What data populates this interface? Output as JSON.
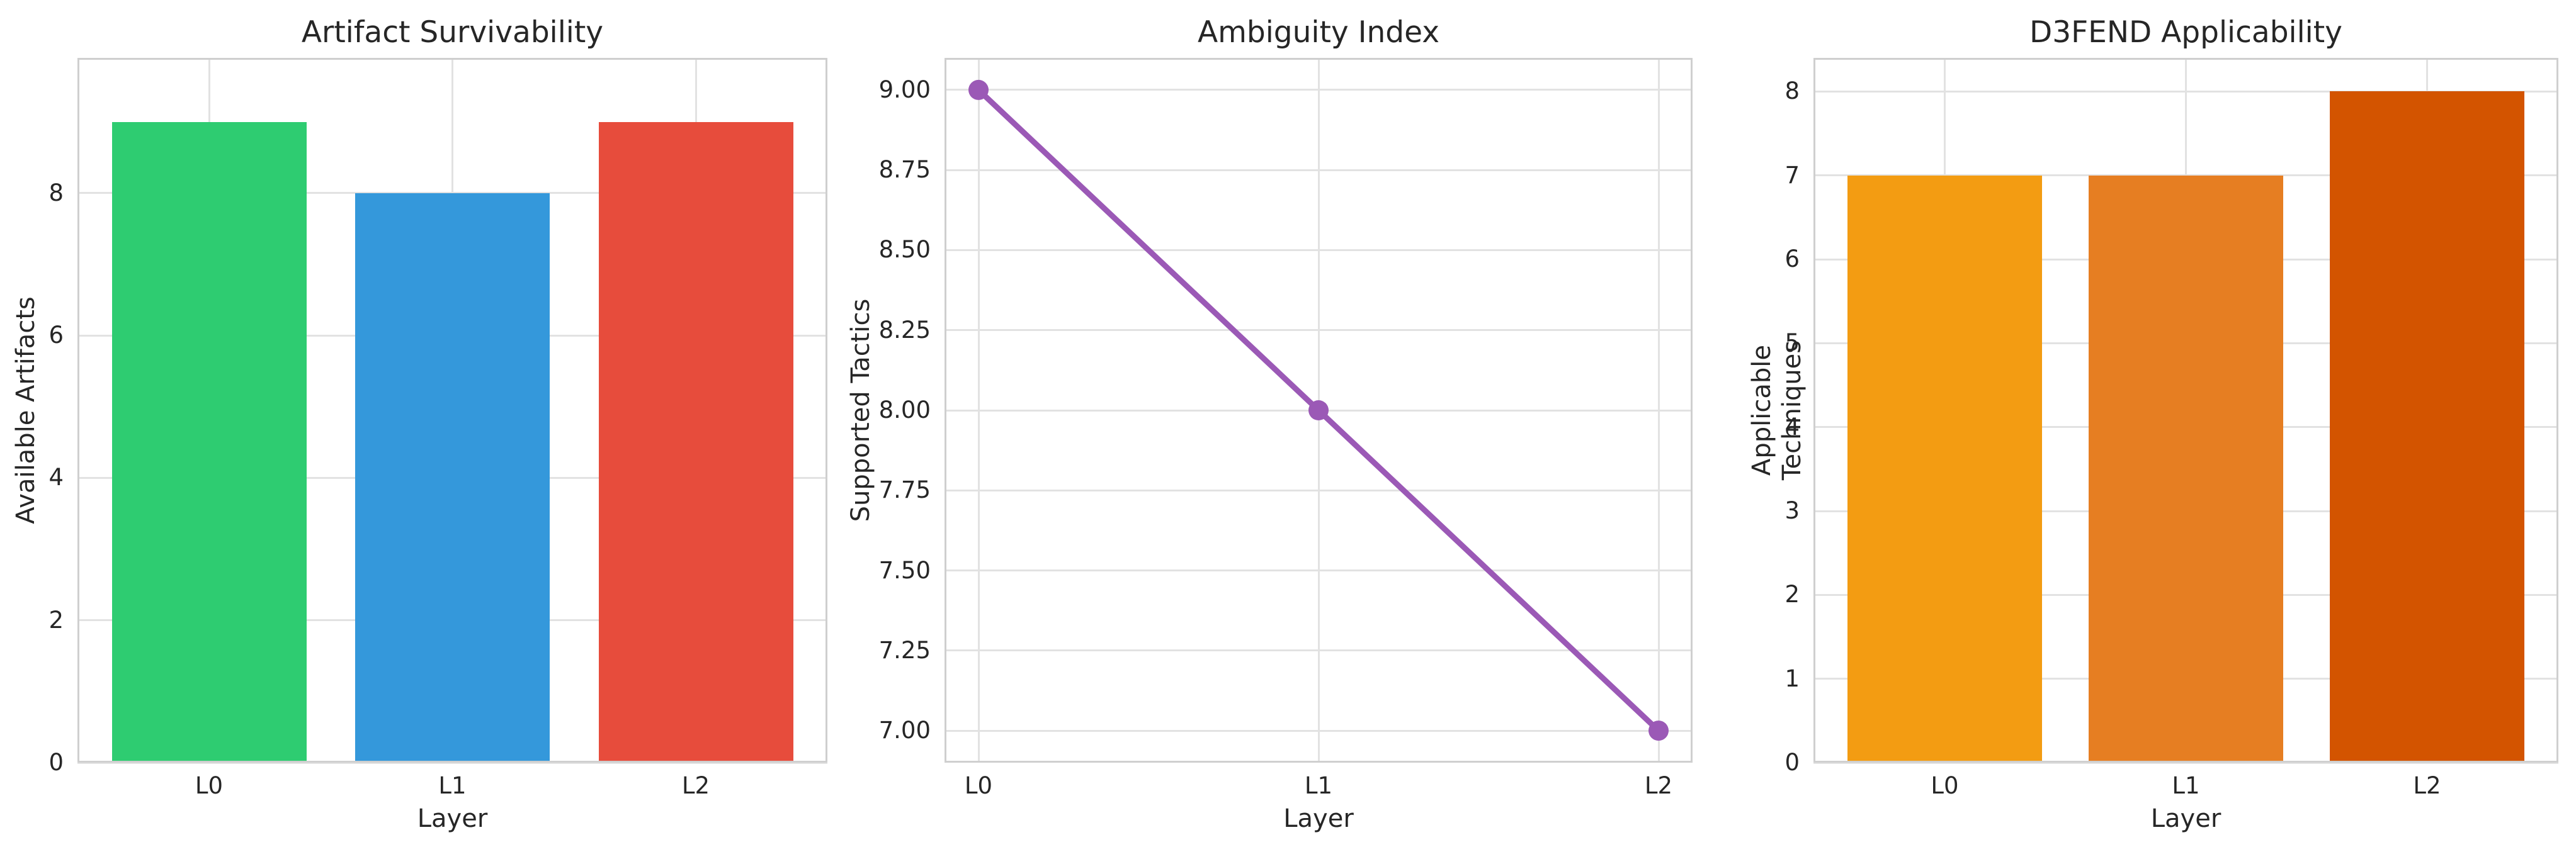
{
  "figure": {
    "background_color": "#ffffff",
    "text_color": "#262626",
    "grid_color": "#e2e2e2",
    "spine_color": "#cfcfcf"
  },
  "chart_data": [
    {
      "type": "bar",
      "title": "Artifact Survivability",
      "xlabel": "Layer",
      "ylabel": "Available Artifacts",
      "categories": [
        "L0",
        "L1",
        "L2"
      ],
      "values": [
        9,
        8,
        9
      ],
      "bar_colors": [
        "#2ecc71",
        "#3498db",
        "#e74c3c"
      ],
      "ylim": [
        0,
        9.9
      ],
      "yticks": [
        0,
        2,
        4,
        6,
        8
      ],
      "ytick_labels": [
        "0",
        "2",
        "4",
        "6",
        "8"
      ],
      "grid": true,
      "legend": false
    },
    {
      "type": "line",
      "title": "Ambiguity Index",
      "xlabel": "Layer",
      "ylabel": "Supported Tactics",
      "categories": [
        "L0",
        "L1",
        "L2"
      ],
      "values": [
        9.0,
        8.0,
        7.0
      ],
      "line_color": "#9b59b6",
      "marker": "circle",
      "ylim": [
        6.9,
        9.1
      ],
      "yticks": [
        7.0,
        7.25,
        7.5,
        7.75,
        8.0,
        8.25,
        8.5,
        8.75,
        9.0
      ],
      "ytick_labels": [
        "7.00",
        "7.25",
        "7.50",
        "7.75",
        "8.00",
        "8.25",
        "8.50",
        "8.75",
        "9.00"
      ],
      "grid": true,
      "legend": false
    },
    {
      "type": "bar",
      "title": "D3FEND Applicability",
      "xlabel": "Layer",
      "ylabel": "Applicable Techniques",
      "categories": [
        "L0",
        "L1",
        "L2"
      ],
      "values": [
        7,
        7,
        8
      ],
      "bar_colors": [
        "#f39c12",
        "#e67e22",
        "#d35400"
      ],
      "ylim": [
        0,
        8.4
      ],
      "yticks": [
        0,
        1,
        2,
        3,
        4,
        5,
        6,
        7,
        8
      ],
      "ytick_labels": [
        "0",
        "1",
        "2",
        "3",
        "4",
        "5",
        "6",
        "7",
        "8"
      ],
      "grid": true,
      "legend": false
    }
  ]
}
